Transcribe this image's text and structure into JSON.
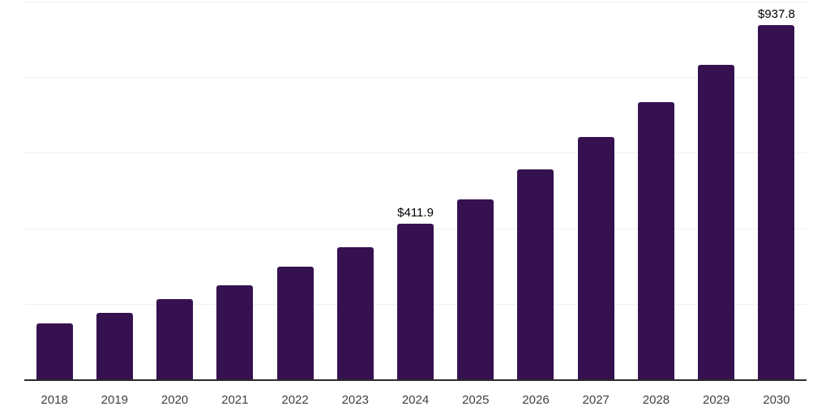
{
  "chart_data": {
    "type": "bar",
    "title": "",
    "xlabel": "",
    "ylabel": "",
    "ylim": [
      0,
      1000
    ],
    "gridline_values": [
      200,
      400,
      600,
      800,
      1000
    ],
    "grid": true,
    "legend": "none",
    "currency_prefix": "$",
    "categories": [
      "2018",
      "2019",
      "2020",
      "2021",
      "2022",
      "2023",
      "2024",
      "2025",
      "2026",
      "2027",
      "2028",
      "2029",
      "2030"
    ],
    "bars": [
      {
        "year": "2018",
        "value": 148.5,
        "label": null
      },
      {
        "year": "2019",
        "value": 176.5,
        "label": null
      },
      {
        "year": "2020",
        "value": 212.5,
        "label": null
      },
      {
        "year": "2021",
        "value": 249.8,
        "label": null
      },
      {
        "year": "2022",
        "value": 297.8,
        "label": null
      },
      {
        "year": "2023",
        "value": 349.3,
        "label": null
      },
      {
        "year": "2024",
        "value": 411.9,
        "label": "$411.9"
      },
      {
        "year": "2025",
        "value": 476.0,
        "label": null
      },
      {
        "year": "2026",
        "value": 555.2,
        "label": null
      },
      {
        "year": "2027",
        "value": 640.6,
        "label": null
      },
      {
        "year": "2028",
        "value": 734.7,
        "label": null
      },
      {
        "year": "2029",
        "value": 833.2,
        "label": null
      },
      {
        "year": "2030",
        "value": 937.8,
        "label": "$937.8"
      }
    ],
    "colors": {
      "bar": "#361150",
      "axis_line": "#2b2b2b",
      "gridline": "#f0f0f0",
      "value_label": "#000000",
      "tick_label": "#404040",
      "background": "#ffffff"
    }
  }
}
